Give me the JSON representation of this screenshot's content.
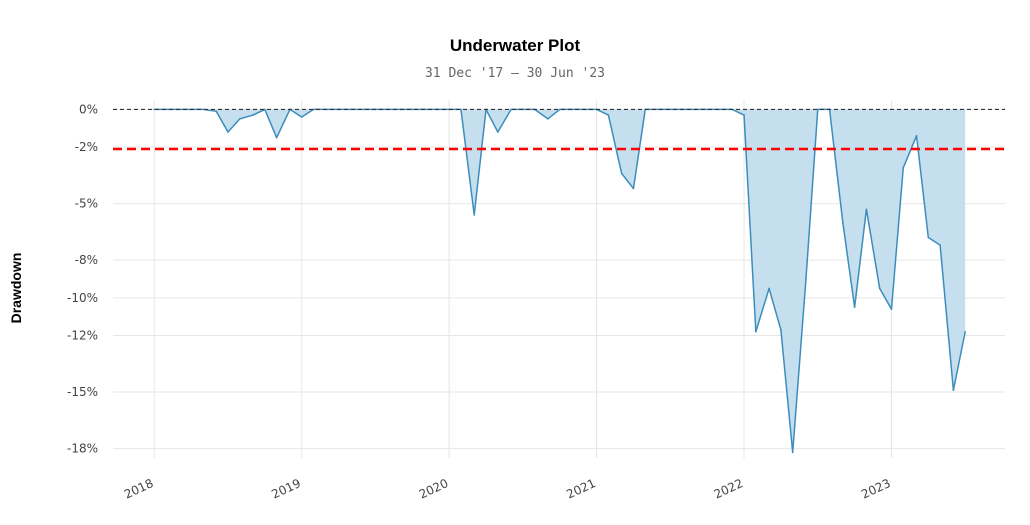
{
  "chart_data": {
    "type": "area",
    "title": "Underwater Plot",
    "subtitle": "31 Dec '17 – 30 Jun '23",
    "ylabel": "Drawdown",
    "xlabel": "",
    "ylim": [
      -18.5,
      0.5
    ],
    "y_ticks": [
      0,
      -2,
      -5,
      -8,
      -10,
      -12,
      -15,
      -18
    ],
    "y_tick_labels": [
      "0%",
      "-2%",
      "-5%",
      "-8%",
      "-10%",
      "-12%",
      "-15%",
      "-18%"
    ],
    "x_tick_labels": [
      "2018",
      "2019",
      "2020",
      "2021",
      "2022",
      "2023"
    ],
    "x_ticks": [
      2018.0,
      2019.0,
      2020.0,
      2021.0,
      2022.0,
      2023.0
    ],
    "xlim": [
      2017.72,
      2023.77
    ],
    "threshold": {
      "value": -2.1,
      "color": "#ff0000"
    },
    "zero_line_color": "#333333",
    "series": [
      {
        "color": "#3c8dbc",
        "fill": "#c6dfef",
        "x": [
          2018.0,
          2018.08,
          2018.17,
          2018.25,
          2018.33,
          2018.42,
          2018.5,
          2018.58,
          2018.67,
          2018.75,
          2018.83,
          2018.92,
          2019.0,
          2019.08,
          2019.17,
          2019.25,
          2019.33,
          2019.42,
          2019.5,
          2019.58,
          2019.67,
          2019.75,
          2019.83,
          2019.92,
          2020.0,
          2020.08,
          2020.17,
          2020.25,
          2020.33,
          2020.42,
          2020.5,
          2020.58,
          2020.67,
          2020.75,
          2020.83,
          2020.92,
          2021.0,
          2021.08,
          2021.17,
          2021.25,
          2021.33,
          2021.42,
          2021.5,
          2021.58,
          2021.67,
          2021.75,
          2021.83,
          2021.92,
          2022.0,
          2022.08,
          2022.17,
          2022.25,
          2022.33,
          2022.42,
          2022.5,
          2022.58,
          2022.67,
          2022.75,
          2022.83,
          2022.92,
          2023.0,
          2023.08,
          2023.17,
          2023.25,
          2023.33,
          2023.42,
          2023.5
        ],
        "values": [
          0,
          0,
          0,
          0,
          0,
          -0.1,
          -1.2,
          -0.5,
          -0.3,
          0,
          -1.5,
          0,
          -0.4,
          0,
          0,
          0,
          0,
          0,
          0,
          0,
          0,
          0,
          0,
          0,
          0,
          0,
          -5.6,
          0,
          -1.2,
          0,
          0,
          0,
          -0.5,
          0,
          0,
          0,
          0,
          -0.3,
          -3.4,
          -4.2,
          0,
          0,
          0,
          0,
          0,
          0,
          0,
          0,
          -0.3,
          -11.8,
          -9.5,
          -11.7,
          -18.2,
          -9.0,
          0,
          0,
          -6.0,
          -10.5,
          -5.3,
          -9.5,
          -10.6,
          -3.1,
          -1.4,
          -6.8,
          -7.2,
          -14.9,
          -11.8
        ]
      }
    ]
  }
}
